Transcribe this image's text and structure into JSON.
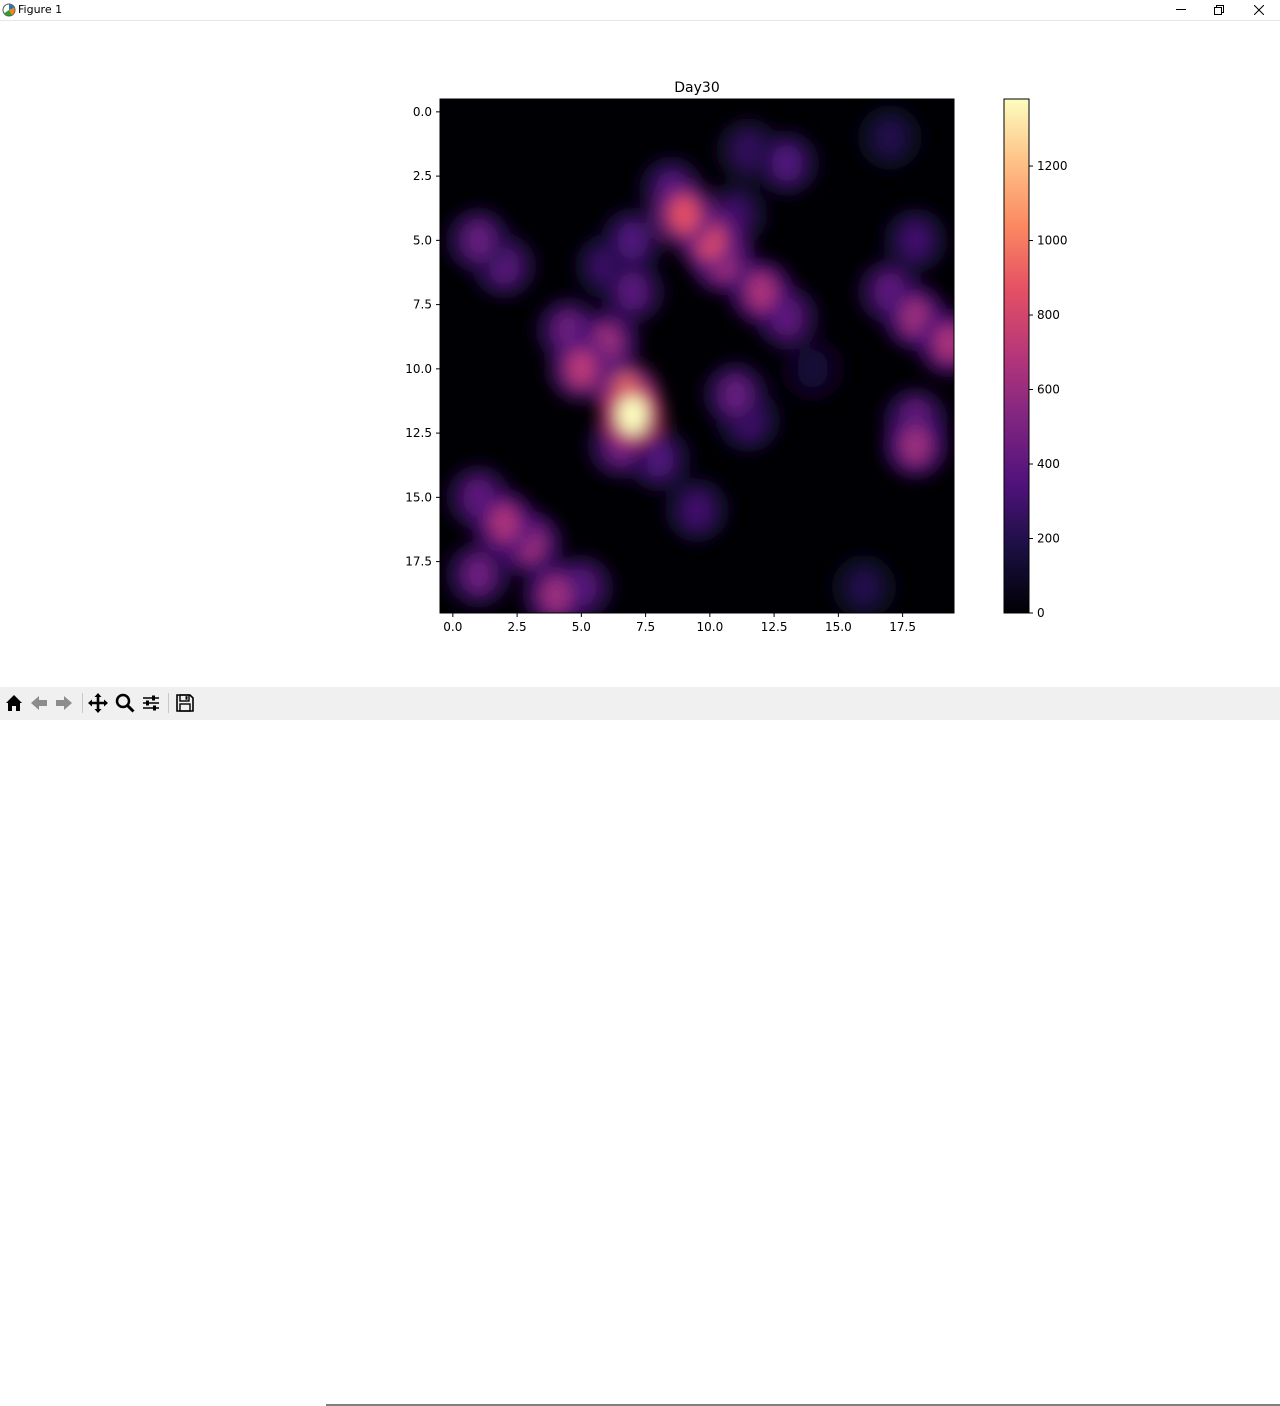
{
  "window": {
    "title": "Figure 1"
  },
  "colors": {
    "cmap": "magma",
    "toolbar_bg": "#f0f0f0"
  },
  "toolbar": {
    "buttons": [
      "home-icon",
      "back-arrow-icon",
      "forward-arrow-icon",
      "pan-icon",
      "zoom-icon",
      "configure-icon",
      "save-icon"
    ],
    "status": ""
  },
  "chart_data": {
    "type": "heatmap",
    "title": "Day30",
    "xlabel": "",
    "ylabel": "",
    "colormap": "magma",
    "interpolation": "smooth",
    "grid": false,
    "xlim": [
      -0.5,
      19.5
    ],
    "ylim": [
      19.5,
      -0.5
    ],
    "xticks": [
      "0.0",
      "2.5",
      "5.0",
      "7.5",
      "10.0",
      "12.5",
      "15.0",
      "17.5"
    ],
    "yticks": [
      "0.0",
      "2.5",
      "5.0",
      "7.5",
      "10.0",
      "12.5",
      "15.0",
      "17.5"
    ],
    "colorbar": {
      "vmin": 0,
      "vmax": 1380,
      "ticks": [
        "0",
        "200",
        "400",
        "600",
        "800",
        "1000",
        "1200"
      ]
    },
    "grid_shape": [
      20,
      20
    ],
    "hotspots": [
      {
        "x": 7,
        "y": 11.8,
        "value": 1380
      },
      {
        "x": 6.8,
        "y": 11.0,
        "value": 1000
      },
      {
        "x": 5,
        "y": 10,
        "value": 700
      },
      {
        "x": 6,
        "y": 9,
        "value": 600
      },
      {
        "x": 4.5,
        "y": 8.5,
        "value": 450
      },
      {
        "x": 6.5,
        "y": 13,
        "value": 450
      },
      {
        "x": 8,
        "y": 13.5,
        "value": 350
      },
      {
        "x": 9.5,
        "y": 15.5,
        "value": 300
      },
      {
        "x": 9,
        "y": 4,
        "value": 850
      },
      {
        "x": 10,
        "y": 5,
        "value": 800
      },
      {
        "x": 10.5,
        "y": 5.8,
        "value": 650
      },
      {
        "x": 12,
        "y": 7,
        "value": 650
      },
      {
        "x": 13,
        "y": 8,
        "value": 400
      },
      {
        "x": 8.5,
        "y": 3,
        "value": 350
      },
      {
        "x": 11,
        "y": 11,
        "value": 420
      },
      {
        "x": 11.5,
        "y": 12,
        "value": 300
      },
      {
        "x": 2,
        "y": 16,
        "value": 650
      },
      {
        "x": 3,
        "y": 16.8,
        "value": 600
      },
      {
        "x": 1,
        "y": 15,
        "value": 400
      },
      {
        "x": 4,
        "y": 18.8,
        "value": 600
      },
      {
        "x": 1,
        "y": 18,
        "value": 450
      },
      {
        "x": 5,
        "y": 18.5,
        "value": 400
      },
      {
        "x": 1,
        "y": 5,
        "value": 420
      },
      {
        "x": 2,
        "y": 6,
        "value": 380
      },
      {
        "x": 7,
        "y": 5,
        "value": 350
      },
      {
        "x": 7,
        "y": 7,
        "value": 380
      },
      {
        "x": 6,
        "y": 6,
        "value": 300
      },
      {
        "x": 13,
        "y": 2,
        "value": 350
      },
      {
        "x": 11.5,
        "y": 1.5,
        "value": 250
      },
      {
        "x": 11,
        "y": 4,
        "value": 280
      },
      {
        "x": 18,
        "y": 8,
        "value": 600
      },
      {
        "x": 19.3,
        "y": 9,
        "value": 650
      },
      {
        "x": 17,
        "y": 7,
        "value": 400
      },
      {
        "x": 18,
        "y": 5,
        "value": 300
      },
      {
        "x": 18,
        "y": 13,
        "value": 600
      },
      {
        "x": 18,
        "y": 12,
        "value": 450
      },
      {
        "x": 17,
        "y": 1,
        "value": 200
      },
      {
        "x": 16,
        "y": 18.5,
        "value": 200
      },
      {
        "x": 14,
        "y": 10,
        "value": 150
      }
    ]
  }
}
